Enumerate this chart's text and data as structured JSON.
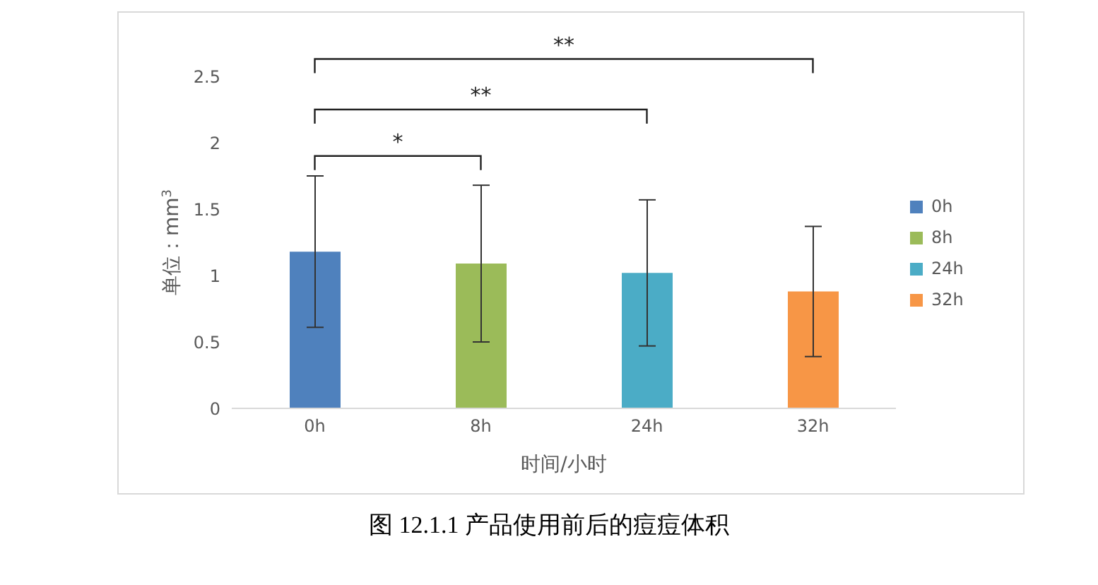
{
  "chart_data": {
    "type": "bar",
    "title": "图 12.1.1 产品使用前后的痘痘体积",
    "xlabel": "时间/小时",
    "ylabel": "单位：mm$^{3}$",
    "categories": [
      "0h",
      "8h",
      "24h",
      "32h"
    ],
    "stacked": true,
    "series": [
      {
        "name": "0h",
        "color": "#4f81bd",
        "values": [
          1.18,
          null,
          null,
          null
        ],
        "errors": [
          0.57,
          null,
          null,
          null
        ]
      },
      {
        "name": "8h",
        "color": "#9bbb59",
        "values": [
          null,
          1.09,
          null,
          null
        ],
        "errors": [
          null,
          0.59,
          null,
          null
        ]
      },
      {
        "name": "24h",
        "color": "#4bacc6",
        "values": [
          null,
          null,
          1.02,
          null
        ],
        "errors": [
          null,
          null,
          0.55,
          null
        ]
      },
      {
        "name": "32h",
        "color": "#f79646",
        "values": [
          null,
          null,
          null,
          0.88
        ],
        "errors": [
          null,
          null,
          null,
          0.49
        ]
      }
    ],
    "ylim": [
      0,
      2.5
    ],
    "yticks": [
      0,
      0.5,
      1,
      1.5,
      2,
      2.5
    ],
    "grid": false,
    "legend": "right",
    "annotations": [
      "*",
      "**",
      "**"
    ]
  }
}
